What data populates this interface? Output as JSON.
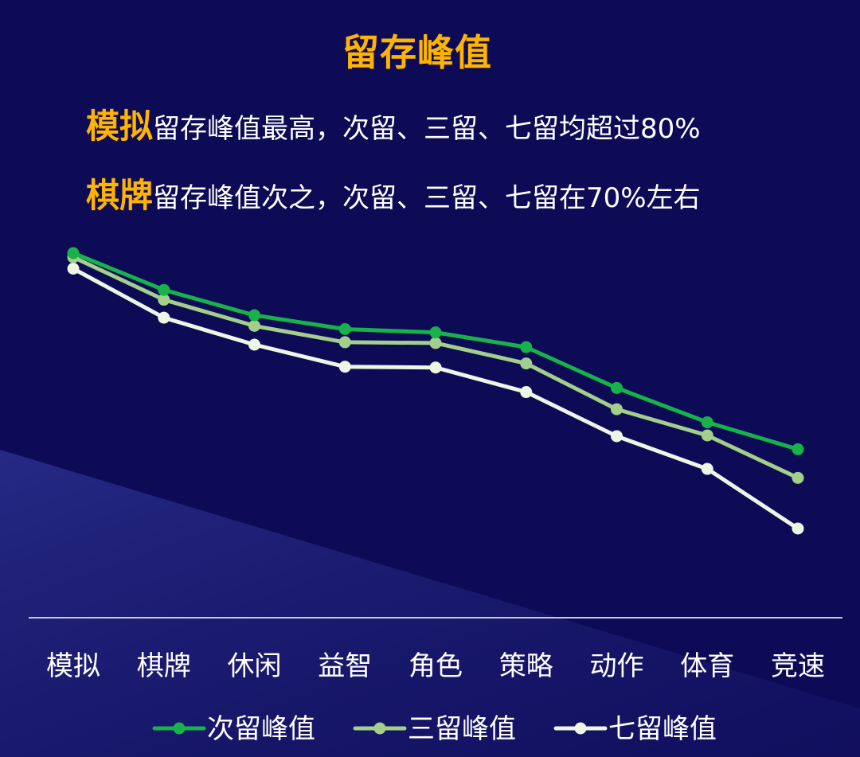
{
  "title": "留存峰值",
  "highlights": [
    {
      "keyword": "模拟",
      "text": "留存峰值最高，次留、三留、七留均超过80%"
    },
    {
      "keyword": "棋牌",
      "text": "留存峰值次之，次留、三留、七留在70%左右"
    }
  ],
  "colors": {
    "background": "#0d0b56",
    "accent": "#ffb400",
    "series": [
      "#17b24a",
      "#a3cf8a",
      "#eef6e6"
    ]
  },
  "chart_data": {
    "type": "line",
    "categories": [
      "模拟",
      "棋牌",
      "休闲",
      "益智",
      "角色",
      "策略",
      "动作",
      "体育",
      "竞速"
    ],
    "series": [
      {
        "name": "次留峰值",
        "values": [
          84.0,
          79.5,
          76.4,
          74.7,
          74.3,
          72.5,
          67.5,
          63.3,
          60.0
        ]
      },
      {
        "name": "三留峰值",
        "values": [
          83.5,
          78.3,
          75.1,
          73.1,
          73.0,
          70.5,
          64.9,
          61.7,
          56.5
        ]
      },
      {
        "name": "七留峰值",
        "values": [
          82.1,
          76.1,
          72.8,
          70.1,
          70.0,
          67.0,
          61.6,
          57.6,
          50.3
        ]
      }
    ],
    "xlabel": "",
    "ylabel": "",
    "y_axis_visible": false,
    "grid": false,
    "legend_position": "bottom"
  }
}
